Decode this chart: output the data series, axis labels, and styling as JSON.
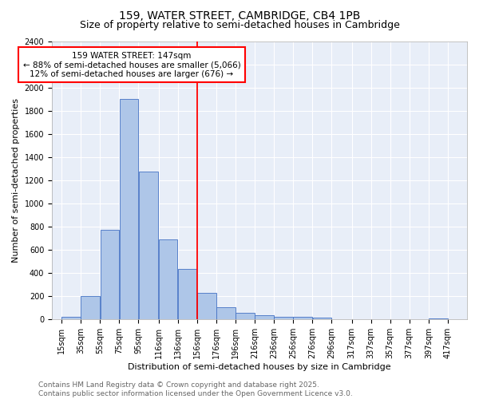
{
  "title": "159, WATER STREET, CAMBRIDGE, CB4 1PB",
  "subtitle": "Size of property relative to semi-detached houses in Cambridge",
  "xlabel": "Distribution of semi-detached houses by size in Cambridge",
  "ylabel": "Number of semi-detached properties",
  "footer_line1": "Contains HM Land Registry data © Crown copyright and database right 2025.",
  "footer_line2": "Contains public sector information licensed under the Open Government Licence v3.0.",
  "annotation_title": "159 WATER STREET: 147sqm",
  "annotation_line1": "← 88% of semi-detached houses are smaller (5,066)",
  "annotation_line2": "12% of semi-detached houses are larger (676) →",
  "bar_left_edges": [
    15,
    35,
    55,
    75,
    95,
    116,
    136,
    156,
    176,
    196,
    216,
    236,
    256,
    276,
    296,
    317,
    337,
    357,
    377,
    397
  ],
  "bar_heights": [
    25,
    200,
    770,
    1900,
    1275,
    690,
    435,
    230,
    105,
    60,
    35,
    25,
    20,
    15,
    0,
    0,
    0,
    0,
    0,
    10
  ],
  "bar_widths": [
    20,
    20,
    20,
    20,
    21,
    20,
    20,
    20,
    20,
    20,
    20,
    20,
    20,
    20,
    21,
    20,
    20,
    20,
    20,
    20
  ],
  "tick_labels": [
    "15sqm",
    "35sqm",
    "55sqm",
    "75sqm",
    "95sqm",
    "116sqm",
    "136sqm",
    "156sqm",
    "176sqm",
    "196sqm",
    "216sqm",
    "236sqm",
    "256sqm",
    "276sqm",
    "296sqm",
    "317sqm",
    "337sqm",
    "357sqm",
    "377sqm",
    "397sqm",
    "417sqm"
  ],
  "tick_positions": [
    15,
    35,
    55,
    75,
    95,
    116,
    136,
    156,
    176,
    196,
    216,
    236,
    256,
    276,
    296,
    317,
    337,
    357,
    377,
    397,
    417
  ],
  "bar_color": "#aec6e8",
  "bar_edge_color": "#4472c4",
  "vline_color": "red",
  "vline_x": 156,
  "background_color": "#e8eef8",
  "ylim": [
    0,
    2400
  ],
  "yticks": [
    0,
    200,
    400,
    600,
    800,
    1000,
    1200,
    1400,
    1600,
    1800,
    2000,
    2200,
    2400
  ],
  "title_fontsize": 10,
  "subtitle_fontsize": 9,
  "axis_label_fontsize": 8,
  "tick_fontsize": 7,
  "footer_fontsize": 6.5,
  "annotation_fontsize": 7.5,
  "xlim_min": 5,
  "xlim_max": 437
}
